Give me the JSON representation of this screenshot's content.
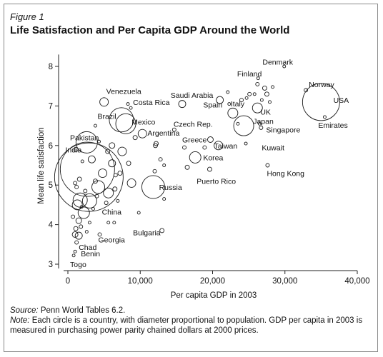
{
  "figure": {
    "label": "Figure 1",
    "title": "Life Satisfaction and Per Capita GDP Around the World",
    "source_label": "Source:",
    "source_text": " Penn World Tables 6.2.",
    "note_label": "Note:",
    "note_text": " Each circle is a country, with diameter proportional to population. GDP per capita in 2003 is measured in purchasing power parity chained dollars at 2000 prices."
  },
  "chart_data": {
    "type": "scatter",
    "xlabel": "Per capita GDP in 2003",
    "ylabel": "Mean life satisfaction",
    "xlim": [
      0,
      40000
    ],
    "ylim": [
      3,
      8.3
    ],
    "xticks": [
      0,
      10000,
      20000,
      30000,
      40000
    ],
    "xtick_labels": [
      "0",
      "10,000",
      "20,000",
      "30,000",
      "40,000"
    ],
    "yticks": [
      3,
      4,
      5,
      6,
      7,
      8
    ],
    "ytick_labels": [
      "3",
      "4",
      "5",
      "6",
      "7",
      "8"
    ],
    "grid": false,
    "legend": "none",
    "points": [
      {
        "x": 2900,
        "y": 5.2,
        "r": 48,
        "label": "China",
        "lx": 4700,
        "ly": 4.33
      },
      {
        "x": 2700,
        "y": 5.4,
        "r": 38,
        "label": "India",
        "lx": -350,
        "ly": 5.9
      },
      {
        "x": 35000,
        "y": 7.1,
        "r": 26,
        "label": "USA",
        "lx": 36700,
        "ly": 7.15
      },
      {
        "x": 11800,
        "y": 4.95,
        "r": 16,
        "label": "Russia",
        "lx": 12600,
        "ly": 4.95
      },
      {
        "x": 2600,
        "y": 6.08,
        "r": 15,
        "label": "Pakistan",
        "lx": 300,
        "ly": 6.2
      },
      {
        "x": 7400,
        "y": 6.65,
        "r": 17,
        "label": "Brazil",
        "lx": 4100,
        "ly": 6.75
      },
      {
        "x": 8000,
        "y": 6.55,
        "r": 14,
        "label": "Mexico",
        "lx": 8800,
        "ly": 6.6
      },
      {
        "x": 24300,
        "y": 6.5,
        "r": 14,
        "label": "Japan",
        "lx": 25600,
        "ly": 6.62
      },
      {
        "x": 17600,
        "y": 5.7,
        "r": 8,
        "label": "Korea",
        "lx": 18700,
        "ly": 5.7
      },
      {
        "x": 5000,
        "y": 7.1,
        "r": 6,
        "label": "Venezuela",
        "lx": 5300,
        "ly": 7.38
      },
      {
        "x": 8700,
        "y": 6.95,
        "r": 2,
        "label": "Costa Rica",
        "lx": 9000,
        "ly": 7.1
      },
      {
        "x": 10300,
        "y": 6.3,
        "r": 6,
        "label": "Argentina",
        "lx": 11000,
        "ly": 6.32
      },
      {
        "x": 14700,
        "y": 6.4,
        "r": 2.5,
        "label": "Czech Rep.",
        "lx": 14600,
        "ly": 6.55
      },
      {
        "x": 19700,
        "y": 6.15,
        "r": 4,
        "label": "Greece",
        "lx": 15800,
        "ly": 6.15
      },
      {
        "x": 20800,
        "y": 6.0,
        "r": 6,
        "label": "Taiwan",
        "lx": 20200,
        "ly": 6.0
      },
      {
        "x": 19600,
        "y": 5.4,
        "r": 3,
        "label": "Puerto Rico",
        "lx": 17800,
        "ly": 5.1
      },
      {
        "x": 21000,
        "y": 7.15,
        "r": 5,
        "label": "Spain",
        "lx": 18700,
        "ly": 7.03
      },
      {
        "x": 15800,
        "y": 7.05,
        "r": 5,
        "label": "Saudi Arabia",
        "lx": 14200,
        "ly": 7.28
      },
      {
        "x": 22800,
        "y": 6.82,
        "r": 7,
        "label": "Italy",
        "lx": 22500,
        "ly": 7.06
      },
      {
        "x": 26200,
        "y": 6.95,
        "r": 7,
        "label": "UK",
        "lx": 26600,
        "ly": 6.85
      },
      {
        "x": 29900,
        "y": 8.0,
        "r": 2,
        "label": "Denmark",
        "lx": 26900,
        "ly": 8.12
      },
      {
        "x": 26300,
        "y": 7.7,
        "r": 2,
        "label": "Finland",
        "lx": 23400,
        "ly": 7.82
      },
      {
        "x": 32900,
        "y": 7.4,
        "r": 2.5,
        "label": "Norway",
        "lx": 33300,
        "ly": 7.55
      },
      {
        "x": 35500,
        "y": 6.72,
        "r": 2,
        "label": "Emirates",
        "lx": 34600,
        "ly": 6.52
      },
      {
        "x": 26700,
        "y": 6.45,
        "r": 2.5,
        "label": "Singapore",
        "lx": 27400,
        "ly": 6.4
      },
      {
        "x": 24600,
        "y": 6.05,
        "r": 2,
        "label": "Kuwait",
        "lx": 26800,
        "ly": 5.95
      },
      {
        "x": 27600,
        "y": 5.5,
        "r": 2.5,
        "label": "Hong Kong",
        "lx": 27500,
        "ly": 5.3
      },
      {
        "x": 13000,
        "y": 3.85,
        "r": 3,
        "label": "Bulgaria",
        "lx": 9000,
        "ly": 3.8
      },
      {
        "x": 4400,
        "y": 3.75,
        "r": 2.5,
        "label": "Georgia",
        "lx": 4200,
        "ly": 3.62
      },
      {
        "x": 1200,
        "y": 3.55,
        "r": 2.5,
        "label": "Chad",
        "lx": 1500,
        "ly": 3.43
      },
      {
        "x": 1000,
        "y": 3.32,
        "r": 2,
        "label": "Benin",
        "lx": 1800,
        "ly": 3.27
      },
      {
        "x": 800,
        "y": 3.22,
        "r": 2,
        "label": "Togo",
        "lx": 300,
        "ly": 3.0
      },
      {
        "x": 1700,
        "y": 4.62,
        "r": 10
      },
      {
        "x": 3000,
        "y": 4.6,
        "r": 10
      },
      {
        "x": 4200,
        "y": 4.95,
        "r": 9
      },
      {
        "x": 1300,
        "y": 4.5,
        "r": 7
      },
      {
        "x": 2200,
        "y": 4.3,
        "r": 8
      },
      {
        "x": 5600,
        "y": 4.8,
        "r": 7
      },
      {
        "x": 4800,
        "y": 5.3,
        "r": 6
      },
      {
        "x": 6100,
        "y": 5.55,
        "r": 5
      },
      {
        "x": 3300,
        "y": 5.65,
        "r": 5
      },
      {
        "x": 7500,
        "y": 5.85,
        "r": 6
      },
      {
        "x": 6100,
        "y": 6.0,
        "r": 4
      },
      {
        "x": 5500,
        "y": 5.85,
        "r": 3
      },
      {
        "x": 8400,
        "y": 5.55,
        "r": 3
      },
      {
        "x": 8800,
        "y": 5.05,
        "r": 6
      },
      {
        "x": 9300,
        "y": 6.2,
        "r": 3
      },
      {
        "x": 12100,
        "y": 6.0,
        "r": 3
      },
      {
        "x": 12200,
        "y": 6.05,
        "r": 3
      },
      {
        "x": 12800,
        "y": 5.65,
        "r": 2.5
      },
      {
        "x": 12000,
        "y": 5.35,
        "r": 2.5
      },
      {
        "x": 13300,
        "y": 5.5,
        "r": 2
      },
      {
        "x": 16500,
        "y": 5.45,
        "r": 3
      },
      {
        "x": 16100,
        "y": 5.95,
        "r": 2.5
      },
      {
        "x": 18900,
        "y": 5.95,
        "r": 2.5
      },
      {
        "x": 22100,
        "y": 7.35,
        "r": 2
      },
      {
        "x": 24000,
        "y": 7.15,
        "r": 2.5
      },
      {
        "x": 25100,
        "y": 7.3,
        "r": 2.5
      },
      {
        "x": 26200,
        "y": 7.55,
        "r": 2.5
      },
      {
        "x": 27200,
        "y": 7.45,
        "r": 3
      },
      {
        "x": 27500,
        "y": 7.3,
        "r": 3
      },
      {
        "x": 28300,
        "y": 7.48,
        "r": 2
      },
      {
        "x": 27900,
        "y": 7.1,
        "r": 2
      },
      {
        "x": 26800,
        "y": 7.15,
        "r": 2
      },
      {
        "x": 25800,
        "y": 7.3,
        "r": 2
      },
      {
        "x": 24700,
        "y": 7.2,
        "r": 2
      },
      {
        "x": 22300,
        "y": 7.05,
        "r": 2
      },
      {
        "x": 23500,
        "y": 6.55,
        "r": 2
      },
      {
        "x": 26500,
        "y": 6.55,
        "r": 2
      },
      {
        "x": 1100,
        "y": 5.9,
        "r": 3
      },
      {
        "x": 1600,
        "y": 5.15,
        "r": 3
      },
      {
        "x": 1000,
        "y": 5.05,
        "r": 2.5
      },
      {
        "x": 1200,
        "y": 4.95,
        "r": 2.5
      },
      {
        "x": 1500,
        "y": 4.1,
        "r": 4
      },
      {
        "x": 1100,
        "y": 3.9,
        "r": 3
      },
      {
        "x": 1500,
        "y": 3.72,
        "r": 5
      },
      {
        "x": 1000,
        "y": 3.75,
        "r": 4
      },
      {
        "x": 700,
        "y": 4.2,
        "r": 2.5
      },
      {
        "x": 1800,
        "y": 3.95,
        "r": 2.5
      },
      {
        "x": 2600,
        "y": 3.82,
        "r": 2
      },
      {
        "x": 1900,
        "y": 4.45,
        "r": 2
      },
      {
        "x": 2400,
        "y": 4.85,
        "r": 2.5
      },
      {
        "x": 3800,
        "y": 5.1,
        "r": 3
      },
      {
        "x": 3500,
        "y": 4.4,
        "r": 2
      },
      {
        "x": 4000,
        "y": 4.72,
        "r": 2.5
      },
      {
        "x": 5300,
        "y": 4.55,
        "r": 2.5
      },
      {
        "x": 6500,
        "y": 4.9,
        "r": 3
      },
      {
        "x": 7200,
        "y": 5.3,
        "r": 3
      },
      {
        "x": 6600,
        "y": 5.25,
        "r": 2.5
      },
      {
        "x": 9800,
        "y": 4.3,
        "r": 2
      },
      {
        "x": 6400,
        "y": 4.05,
        "r": 2
      },
      {
        "x": 3000,
        "y": 4.05,
        "r": 2
      },
      {
        "x": 2000,
        "y": 5.6,
        "r": 2
      },
      {
        "x": 4300,
        "y": 6.1,
        "r": 2
      },
      {
        "x": 3800,
        "y": 6.5,
        "r": 2
      },
      {
        "x": 8300,
        "y": 7.05,
        "r": 2
      },
      {
        "x": 13300,
        "y": 4.65,
        "r": 2
      },
      {
        "x": 6900,
        "y": 4.6,
        "r": 2
      },
      {
        "x": 5600,
        "y": 4.05,
        "r": 2
      }
    ]
  }
}
